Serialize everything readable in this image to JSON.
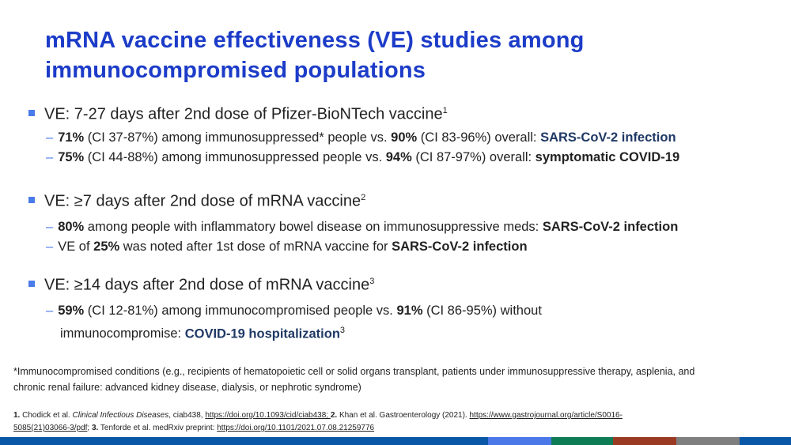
{
  "title": {
    "line1": "mRNA vaccine effectiveness (VE) studies among",
    "line2": "immunocompromised populations"
  },
  "sections": [
    {
      "heading": "VE: 7-27 days after 2nd dose of Pfizer-BioNTech vaccine",
      "sup": "1",
      "items": [
        {
          "b1": "71%",
          "t1": " (CI 37-87%) among immunosuppressed* people vs. ",
          "b2": "90%",
          "t2": " (CI 83-96%) overall: ",
          "hl": "SARS-CoV-2 infection"
        },
        {
          "b1": "75%",
          "t1": " (CI 44-88%) among immunosuppressed people vs. ",
          "b2": "94%",
          "t2": " (CI 87-97%) overall: ",
          "hl": "symptomatic COVID-19"
        }
      ]
    },
    {
      "heading": "VE: ≥7 days after 2nd dose of mRNA vaccine",
      "sup": "2",
      "items": [
        {
          "b1": "80%",
          "t1": " among people with inflammatory bowel disease on immunosuppressive meds: ",
          "hl": "SARS-CoV-2 infection"
        },
        {
          "t0": "VE of ",
          "b1": "25%",
          "t1": " was noted after 1st dose of mRNA vaccine for ",
          "hl": "SARS-CoV-2 infection"
        }
      ]
    },
    {
      "heading": "VE: ≥14 days after 2nd dose of mRNA vaccine",
      "sup": "3",
      "items": [
        {
          "b1": "59%",
          "t1": " (CI 12-81%) among immunocompromised people vs. ",
          "b2": "91%",
          "t2": " (CI 86-95%) without",
          "t3": "immunocompromise: ",
          "hl": "COVID-19 hospitalization",
          "sup": "3"
        }
      ]
    }
  ],
  "footnote": {
    "line1": "*Immunocompromised conditions (e.g., recipients of hematopoietic cell or solid organs transplant, patients under immunosuppressive therapy, asplenia, and",
    "line2": "chronic renal failure: advanced kidney disease, dialysis, or nephrotic syndrome)"
  },
  "refs": {
    "n1": "1.",
    "r1": " Chodick et al. ",
    "j1": "Clinical Infectious Diseases",
    "r1b": ", ciab438, ",
    "l1": "https://doi.org/10.1093/cid/ciab438; ",
    "n2": " 2.",
    "r2": " Khan et al. Gastroenterology (2021). ",
    "l2a": "https://www.gastrojournal.org/article/S0016-",
    "l2b": "5085(21)03066-3/pdf",
    "sep": "; ",
    "n3": "3.",
    "r3": " Tenforde et al. medRxiv preprint: ",
    "l3": "https://doi.org/10.1101/2021.07.08.21259776"
  },
  "colors": {
    "title": "#1c3cc8",
    "accent": "#4a7be8",
    "highlight": "#1f3864",
    "bar": [
      "#0a57a8",
      "#4a78e8",
      "#0e7d55",
      "#9a3a22",
      "#7f7f7f",
      "#0a57a8"
    ]
  }
}
